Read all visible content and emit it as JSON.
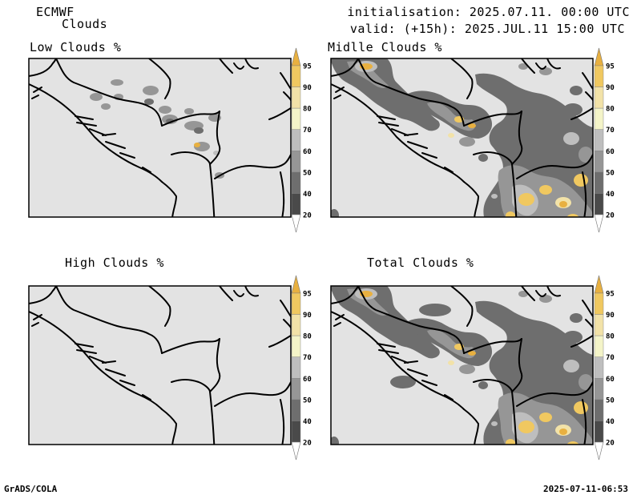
{
  "header": {
    "model": "ECMWF",
    "product": "Clouds",
    "init_label": "initialisation:",
    "init_time": "2025.07.11. 00:00 UTC",
    "valid_label": "valid:",
    "valid_offset": "(+15h):",
    "valid_time": "2025.JUL.11 15:00 UTC"
  },
  "panels": [
    {
      "id": "low",
      "title": "Low Clouds %"
    },
    {
      "id": "middle",
      "title": "Midlle Clouds %"
    },
    {
      "id": "high",
      "title": "High Clouds %"
    },
    {
      "id": "total",
      "title": "Total Clouds %"
    }
  ],
  "colorbar": {
    "levels": [
      "20",
      "40",
      "50",
      "60",
      "70",
      "80",
      "90",
      "95"
    ],
    "colors": {
      "20": "#4a4a4a",
      "40": "#6e6e6e",
      "50": "#969696",
      "60": "#bebebe",
      "70": "#f4f4c8",
      "80": "#f2e2a8",
      "90": "#f0c860",
      "95": "#e8b040"
    }
  },
  "map": {
    "background": "#e3e3e3",
    "border_color": "#000000"
  },
  "footer": {
    "software": "GrADS/COLA",
    "timestamp": "2025-07-11-06:53"
  }
}
